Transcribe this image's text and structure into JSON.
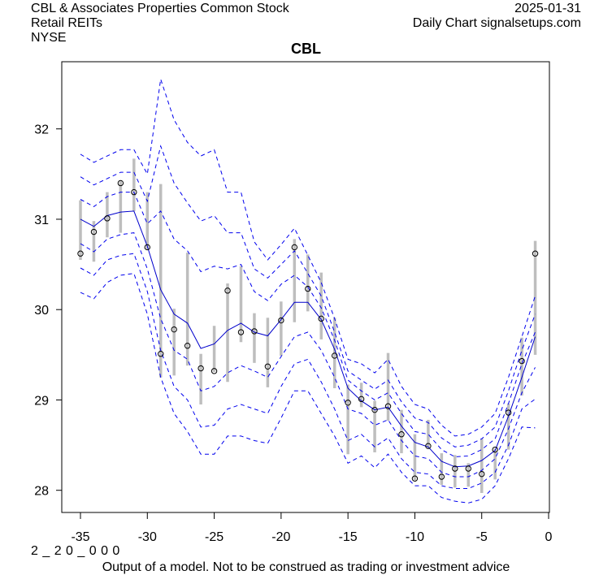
{
  "header": {
    "company": "CBL & Associates Properties Common Stock",
    "sector": "Retail REITs",
    "exchange": "NYSE",
    "date": "2025-01-31",
    "source": "Daily Chart signalsetups.com"
  },
  "footer": {
    "code": "2 _ 2 0 _ 0 0 0",
    "disclaimer": "Output of a model. Not to be construed as trading or investment advice"
  },
  "colors": {
    "band": "#0000ee",
    "center": "#0000cc",
    "range_bar": "#bebebe",
    "point": "#000000"
  },
  "chart_data": {
    "type": "line",
    "title": "CBL",
    "xlabel": "",
    "ylabel": "",
    "xlim": [
      -36.4,
      0.4
    ],
    "ylim": [
      27.75,
      32.75
    ],
    "xticks": [
      -35,
      -30,
      -25,
      -20,
      -15,
      -10,
      -5,
      0
    ],
    "yticks": [
      28,
      29,
      30,
      31,
      32
    ],
    "grid": false,
    "x": [
      -35,
      -34,
      -33,
      -32,
      -31,
      -30,
      -29,
      -28,
      -27,
      -26,
      -25,
      -24,
      -23,
      -22,
      -21,
      -20,
      -19,
      -18,
      -17,
      -16,
      -15,
      -14,
      -13,
      -12,
      -11,
      -10,
      -9,
      -8,
      -7,
      -6,
      -5,
      -4,
      -3,
      -2,
      -1
    ],
    "close": [
      30.62,
      30.86,
      31.01,
      31.4,
      31.3,
      30.69,
      29.51,
      29.78,
      29.6,
      29.35,
      29.32,
      30.21,
      29.75,
      29.76,
      29.37,
      29.88,
      30.69,
      30.23,
      29.9,
      29.49,
      28.97,
      29.01,
      28.89,
      28.93,
      28.62,
      28.13,
      28.49,
      28.15,
      28.24,
      28.24,
      28.18,
      28.45,
      28.86,
      29.43,
      30.62
    ],
    "range_high": [
      31.21,
      30.98,
      31.3,
      31.42,
      31.67,
      31.3,
      31.39,
      30.01,
      30.63,
      29.51,
      29.82,
      30.29,
      30.48,
      29.96,
      29.91,
      30.09,
      30.78,
      30.61,
      30.41,
      29.91,
      29.17,
      29.19,
      28.99,
      29.52,
      28.89,
      28.62,
      28.78,
      28.41,
      28.39,
      28.3,
      28.57,
      28.46,
      28.96,
      29.69,
      30.76
    ],
    "range_low": [
      30.55,
      30.53,
      30.8,
      30.85,
      31.09,
      30.67,
      29.25,
      29.27,
      29.38,
      28.95,
      29.31,
      29.2,
      29.64,
      29.41,
      29.14,
      29.49,
      29.86,
      29.98,
      29.67,
      29.13,
      28.4,
      28.92,
      28.42,
      28.77,
      28.41,
      28.11,
      28.47,
      28.06,
      28.03,
      28.04,
      27.97,
      28.12,
      28.45,
      29.05,
      29.5
    ],
    "series": [
      {
        "name": "center",
        "style": "solid",
        "values": [
          31.0,
          30.92,
          31.04,
          31.08,
          31.09,
          30.7,
          30.22,
          29.95,
          29.85,
          29.57,
          29.62,
          29.77,
          29.85,
          29.75,
          29.71,
          29.89,
          30.08,
          30.08,
          29.89,
          29.56,
          29.13,
          28.99,
          28.89,
          28.92,
          28.71,
          28.53,
          28.48,
          28.32,
          28.26,
          28.27,
          28.33,
          28.44,
          28.82,
          29.25,
          29.7
        ]
      },
      {
        "name": "upper-3",
        "style": "dashed",
        "values": [
          31.72,
          31.63,
          31.7,
          31.77,
          31.77,
          31.5,
          32.55,
          32.1,
          31.85,
          31.7,
          31.77,
          31.3,
          31.3,
          30.75,
          30.55,
          30.72,
          30.9,
          30.6,
          30.3,
          29.9,
          29.45,
          29.4,
          29.3,
          29.45,
          29.15,
          28.95,
          28.9,
          28.72,
          28.6,
          28.62,
          28.7,
          28.85,
          29.25,
          29.7,
          30.15
        ]
      },
      {
        "name": "upper-2",
        "style": "dashed",
        "values": [
          31.47,
          31.38,
          31.45,
          31.52,
          31.52,
          31.2,
          31.81,
          31.4,
          31.18,
          30.98,
          31.04,
          30.85,
          30.85,
          30.45,
          30.35,
          30.5,
          30.65,
          30.4,
          30.15,
          29.75,
          29.32,
          29.22,
          29.12,
          29.22,
          28.98,
          28.8,
          28.75,
          28.58,
          28.48,
          28.5,
          28.57,
          28.7,
          29.1,
          29.55,
          29.95
        ]
      },
      {
        "name": "upper-1",
        "style": "dashed",
        "values": [
          31.22,
          31.14,
          31.25,
          31.3,
          31.3,
          30.95,
          31.09,
          30.78,
          30.65,
          30.42,
          30.48,
          30.45,
          30.5,
          30.2,
          30.1,
          30.28,
          30.38,
          30.25,
          30.02,
          29.66,
          29.22,
          29.1,
          29.0,
          29.08,
          28.85,
          28.65,
          28.62,
          28.45,
          28.37,
          28.38,
          28.45,
          28.57,
          28.96,
          29.4,
          29.75
        ]
      },
      {
        "name": "lower-1",
        "style": "dashed",
        "values": [
          30.73,
          30.64,
          30.78,
          30.83,
          30.85,
          30.45,
          29.9,
          29.55,
          29.45,
          29.1,
          29.15,
          29.3,
          29.38,
          29.32,
          29.25,
          29.48,
          29.7,
          29.75,
          29.55,
          29.25,
          28.9,
          28.85,
          28.72,
          28.78,
          28.55,
          28.38,
          28.35,
          28.2,
          28.15,
          28.15,
          28.22,
          28.35,
          28.68,
          29.08,
          29.36
        ]
      },
      {
        "name": "lower-2",
        "style": "dashed",
        "values": [
          30.46,
          30.38,
          30.55,
          30.6,
          30.62,
          30.2,
          29.55,
          29.15,
          29.0,
          28.7,
          28.72,
          28.9,
          28.95,
          28.9,
          28.85,
          29.15,
          29.4,
          29.45,
          29.2,
          28.9,
          28.55,
          28.62,
          28.48,
          28.58,
          28.35,
          28.2,
          28.18,
          28.05,
          28.02,
          28.02,
          28.08,
          28.2,
          28.5,
          28.9,
          29.01
        ]
      },
      {
        "name": "lower-3",
        "style": "dashed",
        "values": [
          30.19,
          30.12,
          30.3,
          30.38,
          30.4,
          29.95,
          29.25,
          28.85,
          28.65,
          28.4,
          28.4,
          28.6,
          28.6,
          28.55,
          28.52,
          28.8,
          29.1,
          29.1,
          28.85,
          28.6,
          28.3,
          28.38,
          28.25,
          28.4,
          28.2,
          28.05,
          28.05,
          27.92,
          27.88,
          27.86,
          27.9,
          28.05,
          28.35,
          28.7,
          28.69
        ]
      }
    ]
  }
}
